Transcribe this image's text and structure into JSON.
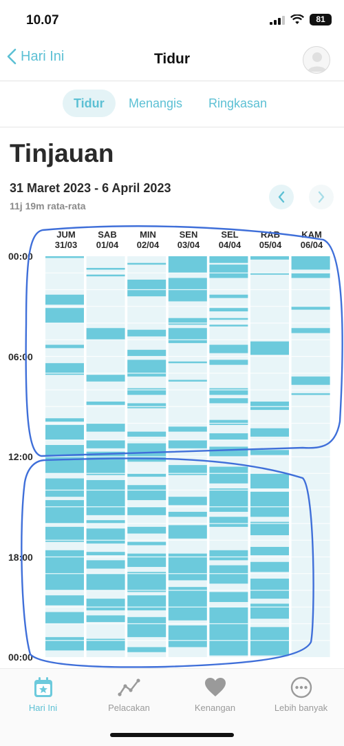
{
  "status_bar": {
    "time": "10.07",
    "battery": "81"
  },
  "nav": {
    "back_label": "Hari Ini",
    "title": "Tidur"
  },
  "tabs": [
    {
      "label": "Tidur",
      "active": true
    },
    {
      "label": "Menangis",
      "active": false
    },
    {
      "label": "Ringkasan",
      "active": false
    }
  ],
  "overview": {
    "heading": "Tinjauan",
    "range": "31 Maret 2023 - 6 April 2023",
    "average": "11j 19m rata-rata"
  },
  "chart_data": {
    "type": "heatmap",
    "days": [
      {
        "day": "JUM",
        "date": "31/03"
      },
      {
        "day": "SAB",
        "date": "01/04"
      },
      {
        "day": "MIN",
        "date": "02/04"
      },
      {
        "day": "SEN",
        "date": "03/04"
      },
      {
        "day": "SEL",
        "date": "04/04"
      },
      {
        "day": "RAB",
        "date": "05/04"
      },
      {
        "day": "KAM",
        "date": "06/04"
      }
    ],
    "time_labels": [
      "00:00",
      "06:00",
      "12:00",
      "18:00",
      "00:00"
    ],
    "y_range_hours": [
      0,
      24
    ],
    "sleep_color": "#6ccadc",
    "empty_color": "#e8f5f8",
    "sleep_sessions_hours": [
      [
        [
          0.0,
          0.1
        ],
        [
          2.3,
          2.9
        ],
        [
          3.1,
          4.0
        ],
        [
          5.3,
          5.5
        ],
        [
          6.4,
          7.1
        ],
        [
          9.7,
          9.9
        ],
        [
          10.1,
          11.0
        ],
        [
          11.3,
          13.0
        ],
        [
          13.3,
          14.4
        ],
        [
          14.6,
          16.0
        ],
        [
          16.2,
          17.1
        ],
        [
          17.6,
          20.0
        ],
        [
          20.3,
          20.9
        ],
        [
          21.3,
          22.0
        ],
        [
          22.8,
          23.6
        ]
      ],
      [
        [
          0.7,
          0.8
        ],
        [
          1.1,
          1.2
        ],
        [
          4.3,
          5.0
        ],
        [
          7.1,
          7.5
        ],
        [
          8.7,
          8.9
        ],
        [
          10.0,
          10.5
        ],
        [
          11.0,
          11.5
        ],
        [
          11.7,
          13.1
        ],
        [
          13.4,
          15.5
        ],
        [
          15.8,
          16.0
        ],
        [
          16.3,
          17.2
        ],
        [
          17.7,
          17.9
        ],
        [
          18.2,
          18.7
        ],
        [
          19.0,
          20.0
        ],
        [
          20.5,
          21.2
        ],
        [
          21.5,
          21.9
        ],
        [
          22.9,
          23.6
        ]
      ],
      [
        [
          0.4,
          0.5
        ],
        [
          1.4,
          2.4
        ],
        [
          4.4,
          4.8
        ],
        [
          5.6,
          6.0
        ],
        [
          6.2,
          7.2
        ],
        [
          7.9,
          8.3
        ],
        [
          8.8,
          9.1
        ],
        [
          10.5,
          10.8
        ],
        [
          11.2,
          12.3
        ],
        [
          13.0,
          13.2
        ],
        [
          13.7,
          14.6
        ],
        [
          15.0,
          15.5
        ],
        [
          16.2,
          16.6
        ],
        [
          17.1,
          17.3
        ],
        [
          17.8,
          18.6
        ],
        [
          18.9,
          20.1
        ],
        [
          20.3,
          21.2
        ],
        [
          21.6,
          22.8
        ],
        [
          23.4,
          23.7
        ]
      ],
      [
        [
          0.0,
          1.0
        ],
        [
          1.3,
          2.7
        ],
        [
          3.7,
          4.1
        ],
        [
          4.3,
          5.2
        ],
        [
          6.3,
          6.4
        ],
        [
          7.4,
          7.5
        ],
        [
          10.2,
          10.5
        ],
        [
          11.0,
          11.5
        ],
        [
          12.5,
          13.1
        ],
        [
          14.4,
          14.9
        ],
        [
          15.3,
          15.6
        ],
        [
          16.1,
          16.9
        ],
        [
          17.8,
          19.4
        ],
        [
          19.8,
          21.8
        ],
        [
          22.1,
          23.4
        ]
      ],
      [
        [
          0.0,
          0.4
        ],
        [
          0.5,
          1.3
        ],
        [
          2.3,
          2.5
        ],
        [
          3.1,
          3.3
        ],
        [
          3.7,
          3.8
        ],
        [
          4.1,
          4.2
        ],
        [
          5.3,
          5.8
        ],
        [
          6.2,
          6.5
        ],
        [
          7.9,
          8.3
        ],
        [
          8.5,
          8.8
        ],
        [
          9.8,
          10.1
        ],
        [
          10.6,
          11.0
        ],
        [
          11.4,
          12.0
        ],
        [
          12.6,
          13.6
        ],
        [
          13.9,
          15.3
        ],
        [
          15.6,
          16.2
        ],
        [
          17.6,
          18.2
        ],
        [
          18.5,
          19.6
        ],
        [
          20.1,
          20.7
        ],
        [
          21.0,
          23.9
        ]
      ],
      [
        [
          0.0,
          0.2
        ],
        [
          1.0,
          1.1
        ],
        [
          5.1,
          5.9
        ],
        [
          8.7,
          9.2
        ],
        [
          10.3,
          10.8
        ],
        [
          11.6,
          11.9
        ],
        [
          13.0,
          13.9
        ],
        [
          14.1,
          15.6
        ],
        [
          15.9,
          16.7
        ],
        [
          17.4,
          17.9
        ],
        [
          18.3,
          18.9
        ],
        [
          19.3,
          20.5
        ],
        [
          20.8,
          21.7
        ],
        [
          22.2,
          23.9
        ]
      ],
      [
        [
          0.0,
          0.8
        ],
        [
          1.0,
          1.3
        ],
        [
          3.0,
          3.2
        ],
        [
          4.3,
          4.6
        ],
        [
          7.2,
          7.7
        ],
        [
          8.2,
          8.3
        ]
      ]
    ]
  },
  "bottom_tabs": [
    {
      "label": "Hari Ini",
      "icon": "calendar-star-icon",
      "active": true
    },
    {
      "label": "Pelacakan",
      "icon": "trend-line-icon",
      "active": false
    },
    {
      "label": "Kenangan",
      "icon": "heart-icon",
      "active": false
    },
    {
      "label": "Lebih banyak",
      "icon": "more-dots-icon",
      "active": false
    }
  ]
}
